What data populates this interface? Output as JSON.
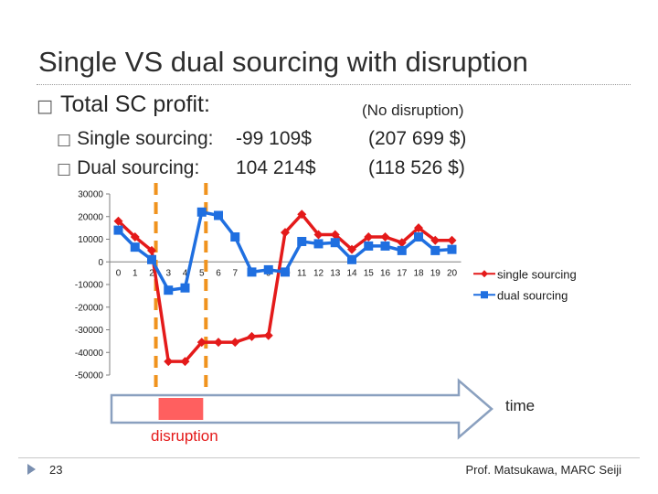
{
  "slide": {
    "title": "Single VS dual sourcing with disruption",
    "total_label": "Total SC profit:",
    "no_disruption_label": "(No disruption)",
    "single_label": "Single sourcing:",
    "single_value": "-99 109$",
    "single_nd": "(207 699 $)",
    "dual_label": "Dual sourcing:",
    "dual_value": "104 214$",
    "dual_nd": "(118 526 $)",
    "time_label": "time",
    "disruption_label": "disruption",
    "page_number": "23",
    "credit": "Prof. Matsukawa, MARC Seiji",
    "bullet_glyph": "□"
  },
  "chart_data": {
    "type": "line",
    "x": [
      0,
      1,
      2,
      3,
      4,
      5,
      6,
      7,
      8,
      9,
      10,
      11,
      12,
      13,
      14,
      15,
      16,
      17,
      18,
      19,
      20
    ],
    "x_tick_labels": [
      "0",
      "1",
      "2",
      "3",
      "4",
      "5",
      "6",
      "7",
      "8",
      "9",
      "10",
      "11",
      "12",
      "13",
      "14",
      "15",
      "16",
      "17",
      "18",
      "19",
      "20"
    ],
    "y_tick_labels": [
      "30000",
      "20000",
      "10000",
      "0",
      "-10000",
      "-20000",
      "-30000",
      "-40000",
      "-50000"
    ],
    "ylim": [
      -50000,
      30000
    ],
    "series": [
      {
        "name": "single sourcing",
        "color": "#e41a1a",
        "marker": "diamond",
        "values": [
          18000,
          11000,
          5000,
          -44000,
          -44000,
          -35500,
          -35500,
          -35500,
          -33000,
          -32500,
          13000,
          21000,
          12000,
          12000,
          5500,
          11000,
          11000,
          8500,
          15000,
          9500,
          9500
        ]
      },
      {
        "name": "dual sourcing",
        "color": "#1f6fe0",
        "marker": "square",
        "values": [
          14000,
          6500,
          1000,
          -12500,
          -11500,
          22000,
          20500,
          11000,
          -4500,
          -3500,
          -4500,
          9000,
          8000,
          8500,
          1000,
          7000,
          7000,
          5000,
          11000,
          5000,
          5500
        ]
      }
    ],
    "disruption_period": [
      3,
      6
    ],
    "legend": "right"
  }
}
